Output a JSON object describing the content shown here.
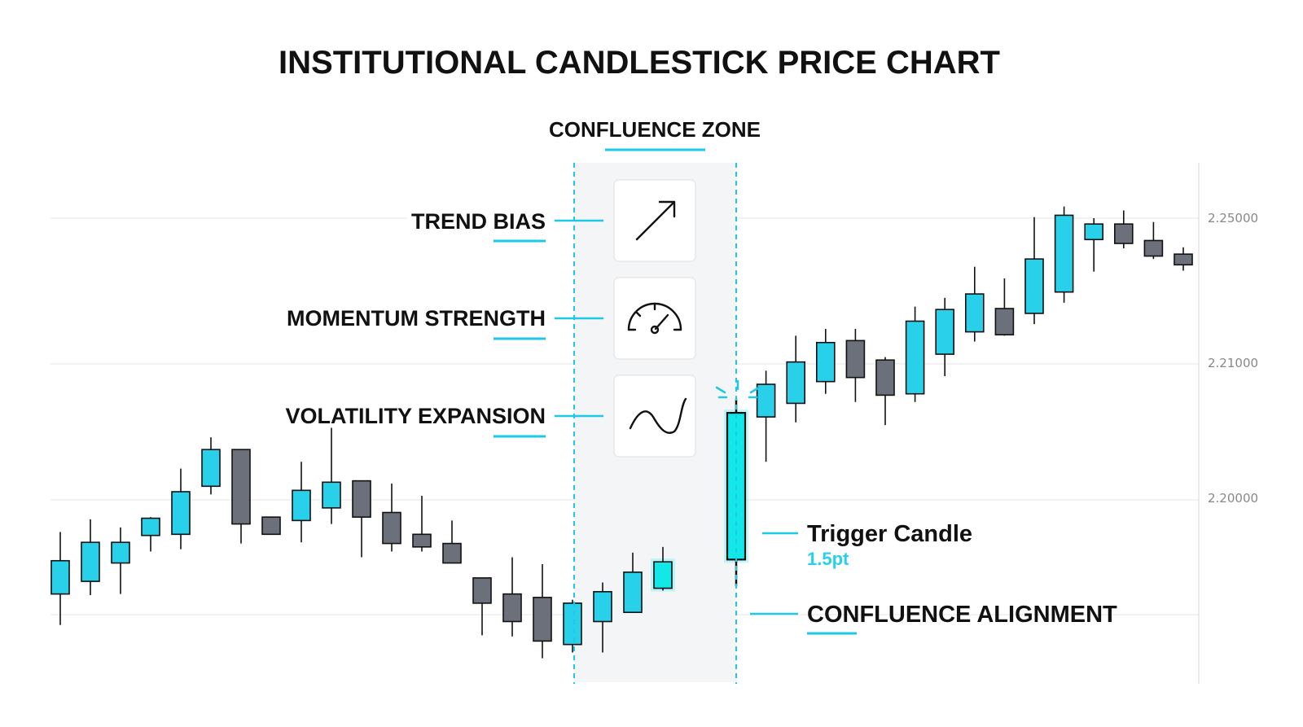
{
  "title": "INSTITUTIONAL CANDLESTICK PRICE CHART",
  "zone": {
    "label": "CONFLUENCE ZONE",
    "factors": [
      {
        "label": "TREND BIAS",
        "icon": "trend-arrow-icon"
      },
      {
        "label": "MOMENTUM STRENGTH",
        "icon": "gauge-icon"
      },
      {
        "label": "VOLATILITY EXPANSION",
        "icon": "wave-curve-icon"
      }
    ],
    "alignment_label": "CONFLUENCE ALIGNMENT"
  },
  "trigger": {
    "label": "Trigger Candle",
    "value": "1.5pt"
  },
  "colors": {
    "bull": "#29d0ea",
    "bear": "#6b707a",
    "trigger": "#12e8e8",
    "accent": "#1ec8e6",
    "zone": "#f4f5f7"
  },
  "chart_data": {
    "type": "candlestick",
    "title": "INSTITUTIONAL CANDLESTICK PRICE CHART",
    "xlabel": "",
    "ylabel": "",
    "y_ticks": [
      "2.25000",
      "2.21000",
      "2.20000"
    ],
    "grid": true,
    "candles": [
      {
        "o": 2.1918,
        "h": 2.1972,
        "l": 2.1891,
        "c": 2.1947
      },
      {
        "o": 2.1929,
        "h": 2.1983,
        "l": 2.1917,
        "c": 2.1963
      },
      {
        "o": 2.1945,
        "h": 2.1976,
        "l": 2.1918,
        "c": 2.1963
      },
      {
        "o": 2.1969,
        "h": 2.1985,
        "l": 2.1955,
        "c": 2.1984
      },
      {
        "o": 2.197,
        "h": 2.2023,
        "l": 2.1957,
        "c": 2.2006
      },
      {
        "o": 2.201,
        "h": 2.2046,
        "l": 2.2004,
        "c": 2.2037
      },
      {
        "o": 2.2037,
        "h": 2.2037,
        "l": 2.1962,
        "c": 2.1979
      },
      {
        "o": 2.1985,
        "h": 2.1985,
        "l": 2.197,
        "c": 2.197
      },
      {
        "o": 2.1982,
        "h": 2.2028,
        "l": 2.1963,
        "c": 2.2007
      },
      {
        "o": 2.1993,
        "h": 2.2053,
        "l": 2.1979,
        "c": 2.2013
      },
      {
        "o": 2.2014,
        "h": 2.2014,
        "l": 2.195,
        "c": 2.1985
      },
      {
        "o": 2.1989,
        "h": 2.2012,
        "l": 2.1955,
        "c": 2.1962
      },
      {
        "o": 2.197,
        "h": 2.2003,
        "l": 2.1955,
        "c": 2.1959
      },
      {
        "o": 2.1962,
        "h": 2.1982,
        "l": 2.1946,
        "c": 2.1945
      },
      {
        "o": 2.1932,
        "h": 2.1932,
        "l": 2.1882,
        "c": 2.191
      },
      {
        "o": 2.1918,
        "h": 2.195,
        "l": 2.1881,
        "c": 2.1894
      },
      {
        "o": 2.1915,
        "h": 2.1944,
        "l": 2.1862,
        "c": 2.1877
      },
      {
        "o": 2.1874,
        "h": 2.1913,
        "l": 2.1867,
        "c": 2.191
      },
      {
        "o": 2.1894,
        "h": 2.1928,
        "l": 2.1867,
        "c": 2.192
      },
      {
        "o": 2.1902,
        "h": 2.1954,
        "l": 2.1902,
        "c": 2.1937
      },
      {
        "o": 2.1923,
        "h": 2.1959,
        "l": 2.1921,
        "c": 2.1946
      },
      {
        "o": 2.1948,
        "h": 2.2074,
        "l": 2.1925,
        "c": 2.2064
      },
      {
        "o": 2.2061,
        "h": 2.2095,
        "l": 2.2028,
        "c": 2.2085
      },
      {
        "o": 2.2071,
        "h": 2.2129,
        "l": 2.2057,
        "c": 2.2102
      },
      {
        "o": 2.2087,
        "h": 2.2136,
        "l": 2.2078,
        "c": 2.2122
      },
      {
        "o": 2.2124,
        "h": 2.2136,
        "l": 2.2072,
        "c": 2.209
      },
      {
        "o": 2.2104,
        "h": 2.2107,
        "l": 2.2055,
        "c": 2.2077
      },
      {
        "o": 2.2078,
        "h": 2.2159,
        "l": 2.2072,
        "c": 2.2144
      },
      {
        "o": 2.211,
        "h": 2.2168,
        "l": 2.2091,
        "c": 2.2156
      },
      {
        "o": 2.2133,
        "h": 2.22,
        "l": 2.2123,
        "c": 2.2172
      },
      {
        "o": 2.2157,
        "h": 2.2188,
        "l": 2.2129,
        "c": 2.213
      },
      {
        "o": 2.2152,
        "h": 2.2251,
        "l": 2.2141,
        "c": 2.2208
      },
      {
        "o": 2.2174,
        "h": 2.2262,
        "l": 2.2163,
        "c": 2.2253
      },
      {
        "o": 2.2228,
        "h": 2.225,
        "l": 2.2195,
        "c": 2.2244
      },
      {
        "o": 2.2244,
        "h": 2.2258,
        "l": 2.2219,
        "c": 2.2224
      },
      {
        "o": 2.2227,
        "h": 2.2246,
        "l": 2.2208,
        "c": 2.2211
      },
      {
        "o": 2.2213,
        "h": 2.222,
        "l": 2.2196,
        "c": 2.2202
      }
    ],
    "confluence_zone": {
      "from_index": 17,
      "to_index": 21,
      "trigger_index": 21
    }
  }
}
